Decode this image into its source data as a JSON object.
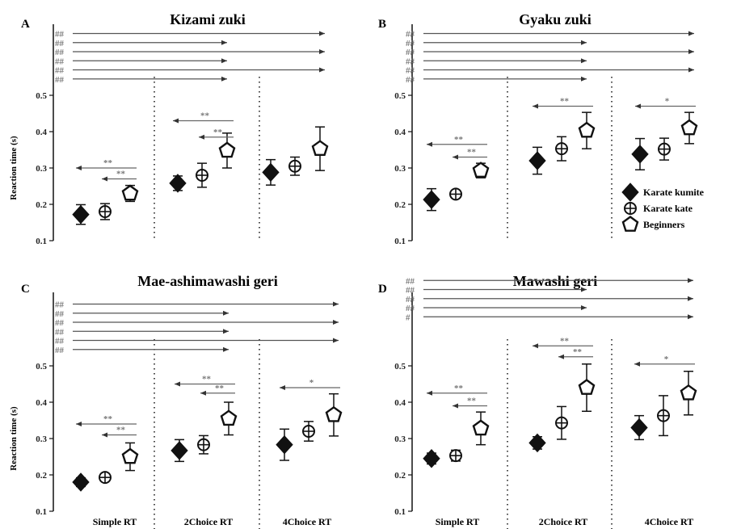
{
  "figure": {
    "x_categories": [
      "Simple RT",
      "2Choice RT",
      "4Choice RT"
    ],
    "legend": [
      {
        "label": "Karate kumite",
        "marker": "diamond-icon"
      },
      {
        "label": "Karate kate",
        "marker": "circle-plus-icon"
      },
      {
        "label": "Beginners",
        "marker": "pentagon-icon"
      }
    ]
  },
  "chart_data": [
    {
      "type": "scatter",
      "panel": "A",
      "title": "Kizami zuki",
      "ylabel": "Reaction time (s)",
      "ylim": [
        0.1,
        0.5
      ],
      "yticks": [
        "0.1",
        "0.2",
        "0.3",
        "0.4",
        "0.5"
      ],
      "categories": [
        "Simple RT",
        "2Choice RT",
        "4Choice RT"
      ],
      "series": [
        {
          "name": "Karate kumite",
          "values": [
            0.172,
            0.258,
            0.288
          ],
          "err": [
            0.027,
            0.02,
            0.035
          ]
        },
        {
          "name": "Karate kate",
          "values": [
            0.18,
            0.28,
            0.305
          ],
          "err": [
            0.022,
            0.033,
            0.025
          ]
        },
        {
          "name": "Beginners",
          "values": [
            0.23,
            0.348,
            0.353
          ],
          "err": [
            0.022,
            0.048,
            0.06
          ]
        }
      ],
      "annotations": [
        {
          "label": "**",
          "y": 0.27,
          "group": 0,
          "to": 1
        },
        {
          "label": "**",
          "y": 0.3,
          "group": 0,
          "to": 0
        },
        {
          "label": "**",
          "y": 0.385,
          "group": 1,
          "to": 1
        },
        {
          "label": "**",
          "y": 0.43,
          "group": 1,
          "to": 0
        },
        {
          "label": "##",
          "y": 0.545,
          "from_group": 0,
          "to_group": 1
        },
        {
          "label": "##",
          "y": 0.57,
          "from_group": 0,
          "to_group": 2
        },
        {
          "label": "##",
          "y": 0.595,
          "from_group": 0,
          "to_group": 1
        },
        {
          "label": "##",
          "y": 0.62,
          "from_group": 0,
          "to_group": 2
        },
        {
          "label": "##",
          "y": 0.645,
          "from_group": 0,
          "to_group": 1
        },
        {
          "label": "##",
          "y": 0.67,
          "from_group": 0,
          "to_group": 2
        }
      ]
    },
    {
      "type": "scatter",
      "panel": "B",
      "title": "Gyaku zuki",
      "ylabel": "",
      "ylim": [
        0.1,
        0.5
      ],
      "yticks": [
        "0.1",
        "0.2",
        "0.3",
        "0.4",
        "0.5"
      ],
      "categories": [
        "Simple RT",
        "2Choice RT",
        "4Choice RT"
      ],
      "series": [
        {
          "name": "Karate kumite",
          "values": [
            0.213,
            0.32,
            0.338
          ],
          "err": [
            0.03,
            0.037,
            0.043
          ]
        },
        {
          "name": "Karate kate",
          "values": [
            0.228,
            0.353,
            0.352
          ],
          "err": [
            0.01,
            0.033,
            0.03
          ]
        },
        {
          "name": "Beginners",
          "values": [
            0.293,
            0.403,
            0.41
          ],
          "err": [
            0.02,
            0.05,
            0.043
          ]
        }
      ],
      "annotations": [
        {
          "label": "**",
          "y": 0.33,
          "group": 0,
          "to": 1
        },
        {
          "label": "**",
          "y": 0.365,
          "group": 0,
          "to": 0
        },
        {
          "label": "**",
          "y": 0.47,
          "group": 1,
          "to": 0
        },
        {
          "label": "*",
          "y": 0.47,
          "group": 2,
          "to": 0
        },
        {
          "label": "##",
          "y": 0.545,
          "from_group": 0,
          "to_group": 1
        },
        {
          "label": "##",
          "y": 0.57,
          "from_group": 0,
          "to_group": 2
        },
        {
          "label": "##",
          "y": 0.595,
          "from_group": 0,
          "to_group": 1
        },
        {
          "label": "##",
          "y": 0.62,
          "from_group": 0,
          "to_group": 2
        },
        {
          "label": "##",
          "y": 0.645,
          "from_group": 0,
          "to_group": 1
        },
        {
          "label": "##",
          "y": 0.67,
          "from_group": 0,
          "to_group": 2
        }
      ]
    },
    {
      "type": "scatter",
      "panel": "C",
      "title": "Mae-ashimawashi geri",
      "ylabel": "Reaction time (s)",
      "ylim": [
        0.1,
        0.5
      ],
      "yticks": [
        "0.1",
        "0.2",
        "0.3",
        "0.4",
        "0.5"
      ],
      "categories": [
        "Simple RT",
        "2Choice RT",
        "4Choice RT"
      ],
      "series": [
        {
          "name": "Karate kumite",
          "values": [
            0.18,
            0.267,
            0.283
          ],
          "err": [
            0.012,
            0.03,
            0.043
          ]
        },
        {
          "name": "Karate kate",
          "values": [
            0.193,
            0.283,
            0.32
          ],
          "err": [
            0.01,
            0.025,
            0.027
          ]
        },
        {
          "name": "Beginners",
          "values": [
            0.25,
            0.355,
            0.365
          ],
          "err": [
            0.038,
            0.045,
            0.058
          ]
        }
      ],
      "annotations": [
        {
          "label": "**",
          "y": 0.31,
          "group": 0,
          "to": 1
        },
        {
          "label": "**",
          "y": 0.34,
          "group": 0,
          "to": 0
        },
        {
          "label": "**",
          "y": 0.425,
          "group": 1,
          "to": 1
        },
        {
          "label": "**",
          "y": 0.45,
          "group": 1,
          "to": 0
        },
        {
          "label": "*",
          "y": 0.44,
          "group": 2,
          "to": 0
        },
        {
          "label": "##",
          "y": 0.545,
          "from_group": 0,
          "to_group": 1
        },
        {
          "label": "##",
          "y": 0.57,
          "from_group": 0,
          "to_group": 2
        },
        {
          "label": "##",
          "y": 0.595,
          "from_group": 0,
          "to_group": 1
        },
        {
          "label": "##",
          "y": 0.62,
          "from_group": 0,
          "to_group": 2
        },
        {
          "label": "##",
          "y": 0.645,
          "from_group": 0,
          "to_group": 1
        },
        {
          "label": "##",
          "y": 0.67,
          "from_group": 0,
          "to_group": 2
        }
      ]
    },
    {
      "type": "scatter",
      "panel": "D",
      "title": "Mawashi geri",
      "ylabel": "",
      "ylim": [
        0.1,
        0.5
      ],
      "yticks": [
        "0.1",
        "0.2",
        "0.3",
        "0.4",
        "0.5"
      ],
      "categories": [
        "Simple RT",
        "2Choice RT",
        "4Choice RT"
      ],
      "series": [
        {
          "name": "Karate kumite",
          "values": [
            0.245,
            0.288,
            0.33
          ],
          "err": [
            0.015,
            0.017,
            0.033
          ]
        },
        {
          "name": "Karate kate",
          "values": [
            0.253,
            0.343,
            0.363
          ],
          "err": [
            0.015,
            0.045,
            0.055
          ]
        },
        {
          "name": "Beginners",
          "values": [
            0.328,
            0.44,
            0.425
          ],
          "err": [
            0.045,
            0.065,
            0.06
          ]
        }
      ],
      "annotations": [
        {
          "label": "**",
          "y": 0.39,
          "group": 0,
          "to": 1
        },
        {
          "label": "**",
          "y": 0.425,
          "group": 0,
          "to": 0
        },
        {
          "label": "**",
          "y": 0.525,
          "group": 1,
          "to": 1
        },
        {
          "label": "**",
          "y": 0.555,
          "group": 1,
          "to": 0
        },
        {
          "label": "*",
          "y": 0.505,
          "group": 2,
          "to": 0
        },
        {
          "label": "#",
          "y": 0.635,
          "from_group": 0,
          "to_group": 2
        },
        {
          "label": "##",
          "y": 0.66,
          "from_group": 0,
          "to_group": 1
        },
        {
          "label": "##",
          "y": 0.685,
          "from_group": 0,
          "to_group": 2
        },
        {
          "label": "##",
          "y": 0.71,
          "from_group": 0,
          "to_group": 1
        },
        {
          "label": "##",
          "y": 0.735,
          "from_group": 0,
          "to_group": 2
        }
      ]
    }
  ]
}
